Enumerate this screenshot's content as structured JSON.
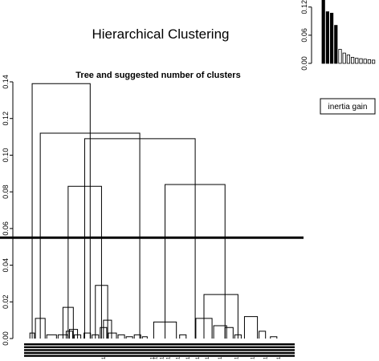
{
  "title": "Hierarchical Clustering",
  "chart_data": [
    {
      "type": "dendrogram",
      "title": "Tree and suggested number of clusters",
      "xlabel": "",
      "ylabel": "",
      "ylim": [
        0,
        0.14
      ],
      "y_ticks": [
        "0.00",
        "0.02",
        "0.04",
        "0.06",
        "0.08",
        "0.10",
        "0.12",
        "0.14"
      ],
      "cut_height": 0.055,
      "leaf_count": 82,
      "leaf_label_text": "1",
      "grid": false,
      "merges": [
        {
          "x1": 0.8,
          "x2": 2.2,
          "h": 0.003
        },
        {
          "x1": 2.5,
          "x2": 5.5,
          "h": 0.011
        },
        {
          "x1": 6.0,
          "x2": 9.0,
          "h": 0.002
        },
        {
          "x1": 9.5,
          "x2": 12.5,
          "h": 0.002
        },
        {
          "x1": 12.0,
          "x2": 14.0,
          "h": 0.004
        },
        {
          "x1": 14.5,
          "x2": 16.5,
          "h": 0.002
        },
        {
          "x1": 13.0,
          "x2": 15.5,
          "h": 0.005
        },
        {
          "x1": 11.0,
          "x2": 14.2,
          "h": 0.017
        },
        {
          "x1": 17.5,
          "x2": 19.5,
          "h": 0.003
        },
        {
          "x1": 20.0,
          "x2": 22.0,
          "h": 0.002
        },
        {
          "x1": 22.5,
          "x2": 24.5,
          "h": 0.006
        },
        {
          "x1": 23.5,
          "x2": 26.0,
          "h": 0.01
        },
        {
          "x1": 25.0,
          "x2": 27.5,
          "h": 0.003
        },
        {
          "x1": 21.0,
          "x2": 24.8,
          "h": 0.029
        },
        {
          "x1": 28.0,
          "x2": 30.0,
          "h": 0.002
        },
        {
          "x1": 30.5,
          "x2": 32.5,
          "h": 0.001
        },
        {
          "x1": 33.0,
          "x2": 35.0,
          "h": 0.002
        },
        {
          "x1": 35.5,
          "x2": 37.0,
          "h": 0.001
        },
        {
          "x1": 39.0,
          "x2": 46.0,
          "h": 0.009
        },
        {
          "x1": 47.0,
          "x2": 49.0,
          "h": 0.002
        },
        {
          "x1": 52.0,
          "x2": 57.0,
          "h": 0.011
        },
        {
          "x1": 57.5,
          "x2": 61.5,
          "h": 0.007
        },
        {
          "x1": 61.0,
          "x2": 63.5,
          "h": 0.006
        },
        {
          "x1": 64.0,
          "x2": 66.0,
          "h": 0.002
        },
        {
          "x1": 54.5,
          "x2": 65.0,
          "h": 0.024
        },
        {
          "x1": 67.0,
          "x2": 71.0,
          "h": 0.012
        },
        {
          "x1": 71.5,
          "x2": 73.5,
          "h": 0.004
        },
        {
          "x1": 75.0,
          "x2": 77.0,
          "h": 0.001
        },
        {
          "x1": 12.6,
          "x2": 22.9,
          "h": 0.083
        },
        {
          "x1": 42.5,
          "x2": 61.0,
          "h": 0.084
        },
        {
          "x1": 17.7,
          "x2": 51.8,
          "h": 0.109
        },
        {
          "x1": 4.0,
          "x2": 34.7,
          "h": 0.112
        },
        {
          "x1": 1.5,
          "x2": 19.4,
          "h": 0.139
        }
      ]
    },
    {
      "type": "bar",
      "title": "",
      "xlabel": "",
      "ylabel": "",
      "ylim": [
        0,
        0.135
      ],
      "y_ticks": [
        "0.00",
        "0.06",
        "0.12"
      ],
      "values": [
        0.135,
        0.11,
        0.107,
        0.081,
        0.03,
        0.022,
        0.018,
        0.013,
        0.011,
        0.01,
        0.009,
        0.008,
        0.007
      ],
      "filled_count": 4,
      "legend": "inertia gain"
    }
  ]
}
